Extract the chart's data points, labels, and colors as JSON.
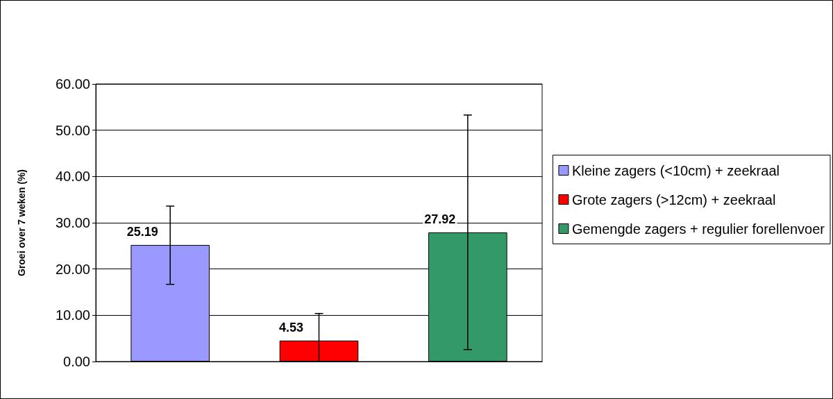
{
  "chart_data": {
    "type": "bar",
    "ylabel": "Groei over 7 weken (%)",
    "categories": [
      null,
      null,
      null
    ],
    "series": [
      {
        "name": "Kleine zagers (<10cm) + zeekraal",
        "color": "#9999ff",
        "values": [
          25.19,
          null,
          null
        ],
        "errors": [
          [
            16.7,
            33.6
          ],
          null,
          null
        ]
      },
      {
        "name": "Grote zagers (>12cm) + zeekraal",
        "color": "#ff0000",
        "values": [
          null,
          4.53,
          null
        ],
        "errors": [
          null,
          [
            0,
            10.4
          ],
          null
        ]
      },
      {
        "name": "Gemengde zagers + regulier forellenvoer",
        "color": "#339966",
        "values": [
          null,
          null,
          27.92
        ],
        "errors": [
          null,
          null,
          [
            2.6,
            53.3
          ]
        ]
      }
    ],
    "ylim": [
      0,
      60
    ],
    "yticks": [
      {
        "value": 0,
        "label": "0.00"
      },
      {
        "value": 10,
        "label": "10.00"
      },
      {
        "value": 20,
        "label": "20.00"
      },
      {
        "value": 30,
        "label": "30.00"
      },
      {
        "value": 40,
        "label": "40.00"
      },
      {
        "value": 50,
        "label": "50.00"
      },
      {
        "value": 60,
        "label": "60.00"
      }
    ],
    "grid": "y",
    "legend": "right",
    "data_labels": true
  }
}
